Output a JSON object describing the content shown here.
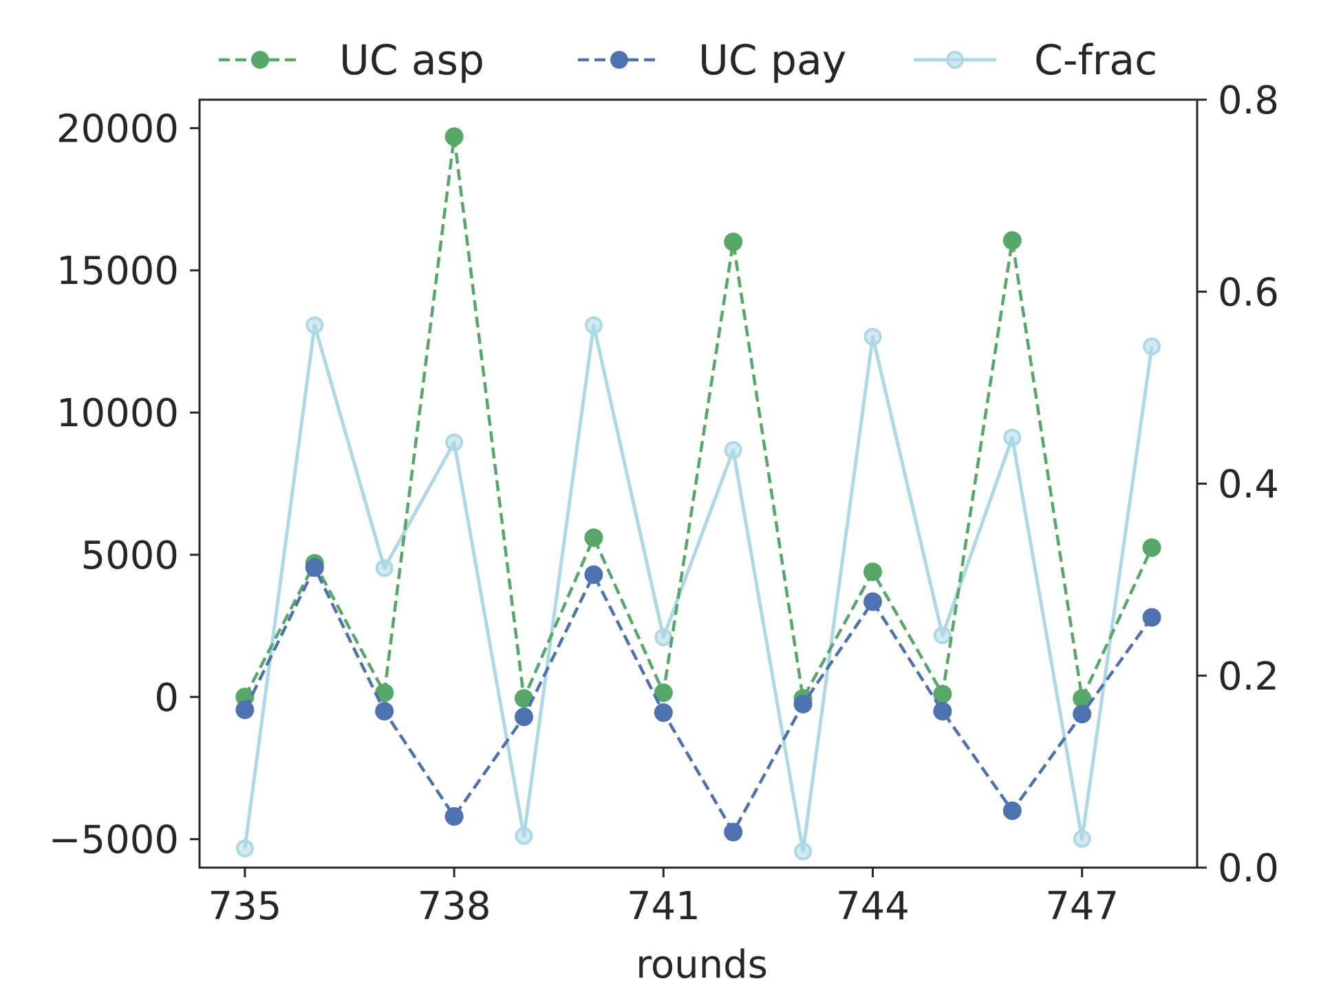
{
  "chart_data": {
    "type": "line",
    "xlabel": "rounds",
    "x": [
      735,
      736,
      737,
      738,
      739,
      740,
      741,
      742,
      743,
      744,
      745,
      746,
      747,
      748
    ],
    "x_ticks": [
      "735",
      "738",
      "741",
      "744",
      "747"
    ],
    "x_tick_values": [
      735,
      738,
      741,
      744,
      747
    ],
    "xlim": [
      734.35,
      748.65
    ],
    "y_left": {
      "ylim": [
        -6000,
        21000
      ],
      "ticks": [
        "20000",
        "15000",
        "10000",
        "5000",
        "0",
        "−5000"
      ],
      "tick_values": [
        20000,
        15000,
        10000,
        5000,
        0,
        -5000
      ]
    },
    "y_right": {
      "ylim": [
        0.0,
        0.8
      ],
      "ticks": [
        "0.8",
        "0.6",
        "0.4",
        "0.2",
        "0.0"
      ],
      "tick_values": [
        0.8,
        0.6,
        0.4,
        0.2,
        0.0
      ]
    },
    "legend_position": "top, above plot",
    "series": [
      {
        "name": "UC asp",
        "axis": "left",
        "style": "dashed",
        "color": "#55a868",
        "values": [
          0,
          4700,
          150,
          19700,
          -50,
          5600,
          150,
          16000,
          -50,
          4400,
          100,
          16050,
          -50,
          5250
        ]
      },
      {
        "name": "UC pay",
        "axis": "left",
        "style": "dashed",
        "color": "#4c72b0",
        "values": [
          -450,
          4550,
          -500,
          -4200,
          -700,
          4300,
          -550,
          -4750,
          -250,
          3350,
          -500,
          -4000,
          -600,
          2800
        ]
      },
      {
        "name": "C-frac",
        "axis": "right",
        "style": "solid",
        "color": "#add8e6",
        "values": [
          0.02,
          0.565,
          0.312,
          0.443,
          0.033,
          0.565,
          0.24,
          0.435,
          0.017,
          0.553,
          0.242,
          0.448,
          0.03,
          0.543
        ]
      }
    ]
  }
}
